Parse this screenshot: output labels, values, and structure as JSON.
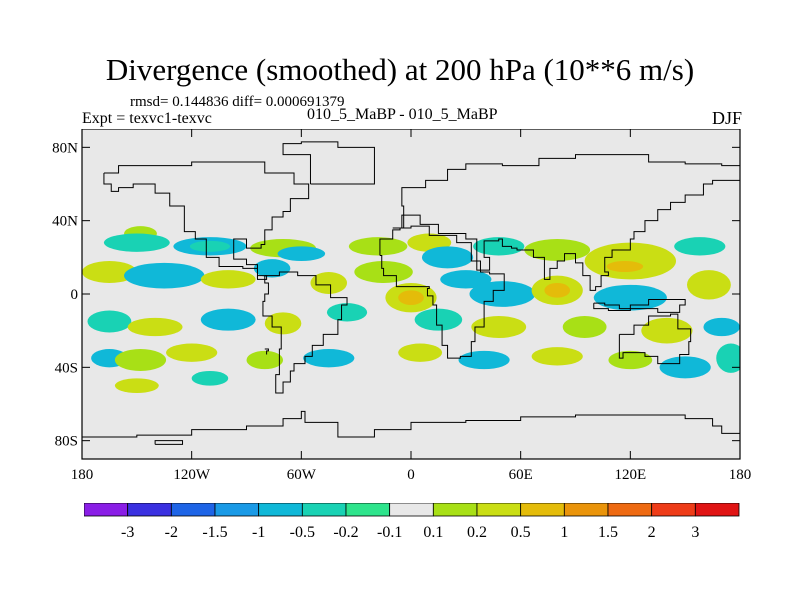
{
  "chart_data": {
    "type": "heatmap",
    "title": "Divergence (smoothed) at 200 hPa (10**6 m/s)",
    "stats_line": "rmsd= 0.144836 diff= 0.000691379",
    "subtitle_left": "Expt = texvc1-texvc",
    "subtitle_center": "010_5_MaBP - 010_5_MaBP",
    "subtitle_right": "DJF",
    "xlim": [
      -180,
      180
    ],
    "ylim": [
      -90,
      90
    ],
    "x_ticks": [
      {
        "value": -180,
        "label": "180"
      },
      {
        "value": -120,
        "label": "120W"
      },
      {
        "value": -60,
        "label": "60W"
      },
      {
        "value": 0,
        "label": "0"
      },
      {
        "value": 60,
        "label": "60E"
      },
      {
        "value": 120,
        "label": "120E"
      },
      {
        "value": 180,
        "label": "180"
      }
    ],
    "y_ticks": [
      {
        "value": 80,
        "label": "80N"
      },
      {
        "value": 40,
        "label": "40N"
      },
      {
        "value": 0,
        "label": "0"
      },
      {
        "value": -40,
        "label": "40S"
      },
      {
        "value": -80,
        "label": "80S"
      }
    ],
    "contour_levels": [
      "-3",
      "-2",
      "-1.5",
      "-1",
      "-0.5",
      "-0.2",
      "-0.1",
      "0.1",
      "0.2",
      "0.5",
      "1",
      "1.5",
      "2",
      "3"
    ],
    "colorbar_colors": [
      "#8a1ee6",
      "#3a30e0",
      "#1e64e6",
      "#1a9ae6",
      "#10b8d8",
      "#19d2b4",
      "#2ee48c",
      "#e8e8e8",
      "#a8e016",
      "#cade14",
      "#e4bc0a",
      "#ea940a",
      "#ee6a12",
      "#ee3c18",
      "#e01414"
    ],
    "background_color": "#e8e8e8",
    "blobs": [
      {
        "lon": -148,
        "lat": 33,
        "rlon": 9,
        "rlat": 4,
        "level": 8
      },
      {
        "lon": -150,
        "lat": 28,
        "rlon": 18,
        "rlat": 5,
        "level": 5
      },
      {
        "lon": -110,
        "lat": 26,
        "rlon": 20,
        "rlat": 5,
        "level": 4
      },
      {
        "lon": -110,
        "lat": 26,
        "rlon": 11,
        "rlat": 3,
        "level": 5
      },
      {
        "lon": -70,
        "lat": 25,
        "rlon": 18,
        "rlat": 5,
        "level": 8
      },
      {
        "lon": -60,
        "lat": 22,
        "rlon": 13,
        "rlat": 4,
        "level": 4
      },
      {
        "lon": -18,
        "lat": 26,
        "rlon": 16,
        "rlat": 5,
        "level": 8
      },
      {
        "lon": 10,
        "lat": 28,
        "rlon": 12,
        "rlat": 5,
        "level": 9
      },
      {
        "lon": 20,
        "lat": 20,
        "rlon": 14,
        "rlat": 6,
        "level": 4
      },
      {
        "lon": 48,
        "lat": 26,
        "rlon": 14,
        "rlat": 5,
        "level": 5
      },
      {
        "lon": 80,
        "lat": 24,
        "rlon": 18,
        "rlat": 6,
        "level": 8
      },
      {
        "lon": 120,
        "lat": 18,
        "rlon": 25,
        "rlat": 10,
        "level": 9
      },
      {
        "lon": 117,
        "lat": 15,
        "rlon": 10,
        "rlat": 3,
        "level": 10
      },
      {
        "lon": 158,
        "lat": 26,
        "rlon": 14,
        "rlat": 5,
        "level": 5
      },
      {
        "lon": -165,
        "lat": 12,
        "rlon": 15,
        "rlat": 6,
        "level": 9
      },
      {
        "lon": -135,
        "lat": 10,
        "rlon": 22,
        "rlat": 7,
        "level": 4
      },
      {
        "lon": -100,
        "lat": 8,
        "rlon": 15,
        "rlat": 5,
        "level": 9
      },
      {
        "lon": -76,
        "lat": 14,
        "rlon": 10,
        "rlat": 5,
        "level": 4
      },
      {
        "lon": -45,
        "lat": 6,
        "rlon": 10,
        "rlat": 6,
        "level": 9
      },
      {
        "lon": -15,
        "lat": 12,
        "rlon": 16,
        "rlat": 6,
        "level": 8
      },
      {
        "lon": 0,
        "lat": -2,
        "rlon": 14,
        "rlat": 8,
        "level": 9
      },
      {
        "lon": 0,
        "lat": -2,
        "rlon": 7,
        "rlat": 4,
        "level": 10
      },
      {
        "lon": 30,
        "lat": 8,
        "rlon": 14,
        "rlat": 5,
        "level": 4
      },
      {
        "lon": 50,
        "lat": 0,
        "rlon": 18,
        "rlat": 7,
        "level": 4
      },
      {
        "lon": 80,
        "lat": 2,
        "rlon": 14,
        "rlat": 8,
        "level": 9
      },
      {
        "lon": 80,
        "lat": 2,
        "rlon": 7,
        "rlat": 4,
        "level": 10
      },
      {
        "lon": 120,
        "lat": -2,
        "rlon": 20,
        "rlat": 7,
        "level": 4
      },
      {
        "lon": 163,
        "lat": 5,
        "rlon": 12,
        "rlat": 8,
        "level": 9
      },
      {
        "lon": -165,
        "lat": -15,
        "rlon": 12,
        "rlat": 6,
        "level": 5
      },
      {
        "lon": -140,
        "lat": -18,
        "rlon": 15,
        "rlat": 5,
        "level": 9
      },
      {
        "lon": -100,
        "lat": -14,
        "rlon": 15,
        "rlat": 6,
        "level": 4
      },
      {
        "lon": -70,
        "lat": -16,
        "rlon": 10,
        "rlat": 6,
        "level": 9
      },
      {
        "lon": -35,
        "lat": -10,
        "rlon": 11,
        "rlat": 5,
        "level": 5
      },
      {
        "lon": 15,
        "lat": -14,
        "rlon": 13,
        "rlat": 6,
        "level": 5
      },
      {
        "lon": 48,
        "lat": -18,
        "rlon": 15,
        "rlat": 6,
        "level": 9
      },
      {
        "lon": 95,
        "lat": -18,
        "rlon": 12,
        "rlat": 6,
        "level": 8
      },
      {
        "lon": 140,
        "lat": -20,
        "rlon": 14,
        "rlat": 7,
        "level": 9
      },
      {
        "lon": 170,
        "lat": -18,
        "rlon": 10,
        "rlat": 5,
        "level": 4
      },
      {
        "lon": -165,
        "lat": -35,
        "rlon": 10,
        "rlat": 5,
        "level": 4
      },
      {
        "lon": -148,
        "lat": -36,
        "rlon": 14,
        "rlat": 6,
        "level": 8
      },
      {
        "lon": -120,
        "lat": -32,
        "rlon": 14,
        "rlat": 5,
        "level": 9
      },
      {
        "lon": -80,
        "lat": -36,
        "rlon": 10,
        "rlat": 5,
        "level": 8
      },
      {
        "lon": -45,
        "lat": -35,
        "rlon": 14,
        "rlat": 5,
        "level": 4
      },
      {
        "lon": 5,
        "lat": -32,
        "rlon": 12,
        "rlat": 5,
        "level": 9
      },
      {
        "lon": 40,
        "lat": -36,
        "rlon": 14,
        "rlat": 5,
        "level": 4
      },
      {
        "lon": 80,
        "lat": -34,
        "rlon": 14,
        "rlat": 5,
        "level": 9
      },
      {
        "lon": 120,
        "lat": -36,
        "rlon": 12,
        "rlat": 5,
        "level": 8
      },
      {
        "lon": 150,
        "lat": -40,
        "rlon": 14,
        "rlat": 6,
        "level": 4
      },
      {
        "lon": 175,
        "lat": -35,
        "rlon": 8,
        "rlat": 8,
        "level": 5
      },
      {
        "lon": -150,
        "lat": -50,
        "rlon": 12,
        "rlat": 4,
        "level": 9
      },
      {
        "lon": -110,
        "lat": -46,
        "rlon": 10,
        "rlat": 4,
        "level": 5
      }
    ],
    "continents": [
      [
        [
          -168,
          66
        ],
        [
          -160,
          70
        ],
        [
          -140,
          70
        ],
        [
          -120,
          72
        ],
        [
          -90,
          72
        ],
        [
          -80,
          66
        ],
        [
          -64,
          60
        ],
        [
          -56,
          52
        ],
        [
          -66,
          45
        ],
        [
          -70,
          42
        ],
        [
          -76,
          35
        ],
        [
          -80,
          27
        ],
        [
          -82,
          25
        ],
        [
          -90,
          30
        ],
        [
          -97,
          26
        ],
        [
          -97,
          19
        ],
        [
          -90,
          16
        ],
        [
          -84,
          10
        ],
        [
          -79,
          8
        ],
        [
          -84,
          14
        ],
        [
          -92,
          15
        ],
        [
          -105,
          20
        ],
        [
          -112,
          30
        ],
        [
          -118,
          34
        ],
        [
          -124,
          42
        ],
        [
          -124,
          48
        ],
        [
          -132,
          55
        ],
        [
          -140,
          60
        ],
        [
          -152,
          58
        ],
        [
          -160,
          56
        ],
        [
          -164,
          60
        ],
        [
          -168,
          66
        ]
      ],
      [
        [
          -80,
          10
        ],
        [
          -72,
          12
        ],
        [
          -62,
          10
        ],
        [
          -52,
          5
        ],
        [
          -44,
          -2
        ],
        [
          -35,
          -6
        ],
        [
          -38,
          -14
        ],
        [
          -40,
          -22
        ],
        [
          -48,
          -28
        ],
        [
          -54,
          -34
        ],
        [
          -58,
          -38
        ],
        [
          -64,
          -42
        ],
        [
          -66,
          -48
        ],
        [
          -70,
          -54
        ],
        [
          -74,
          -52
        ],
        [
          -74,
          -44
        ],
        [
          -72,
          -30
        ],
        [
          -71,
          -18
        ],
        [
          -76,
          -12
        ],
        [
          -81,
          -4
        ],
        [
          -80,
          0
        ],
        [
          -78,
          6
        ],
        [
          -80,
          10
        ]
      ],
      [
        [
          -10,
          36
        ],
        [
          -4,
          48
        ],
        [
          -5,
          58
        ],
        [
          8,
          62
        ],
        [
          20,
          68
        ],
        [
          30,
          71
        ],
        [
          50,
          70
        ],
        [
          70,
          74
        ],
        [
          90,
          76
        ],
        [
          110,
          76
        ],
        [
          130,
          72
        ],
        [
          150,
          71
        ],
        [
          170,
          70
        ],
        [
          180,
          67
        ],
        [
          180,
          62
        ],
        [
          165,
          60
        ],
        [
          160,
          54
        ],
        [
          150,
          50
        ],
        [
          142,
          46
        ],
        [
          135,
          40
        ],
        [
          128,
          34
        ],
        [
          122,
          30
        ],
        [
          120,
          24
        ],
        [
          110,
          20
        ],
        [
          106,
          12
        ],
        [
          108,
          10
        ],
        [
          104,
          4
        ],
        [
          101,
          2
        ],
        [
          98,
          10
        ],
        [
          94,
          17
        ],
        [
          90,
          22
        ],
        [
          84,
          18
        ],
        [
          80,
          14
        ],
        [
          76,
          8
        ],
        [
          73,
          20
        ],
        [
          67,
          24
        ],
        [
          58,
          25
        ],
        [
          55,
          26
        ],
        [
          50,
          30
        ],
        [
          48,
          29
        ],
        [
          40,
          20
        ],
        [
          43,
          13
        ],
        [
          36,
          30
        ],
        [
          30,
          33
        ],
        [
          22,
          33
        ],
        [
          15,
          38
        ],
        [
          10,
          38
        ],
        [
          5,
          43
        ],
        [
          -5,
          36
        ],
        [
          -10,
          36
        ]
      ],
      [
        [
          -17,
          21
        ],
        [
          -16,
          14
        ],
        [
          -15,
          10
        ],
        [
          -8,
          4
        ],
        [
          5,
          4
        ],
        [
          10,
          3
        ],
        [
          9,
          -1
        ],
        [
          12,
          -6
        ],
        [
          14,
          -17
        ],
        [
          17,
          -28
        ],
        [
          20,
          -35
        ],
        [
          27,
          -34
        ],
        [
          33,
          -26
        ],
        [
          35,
          -18
        ],
        [
          40,
          -14
        ],
        [
          40,
          -4
        ],
        [
          45,
          2
        ],
        [
          51,
          11
        ],
        [
          43,
          12
        ],
        [
          38,
          18
        ],
        [
          33,
          28
        ],
        [
          25,
          32
        ],
        [
          10,
          37
        ],
        [
          0,
          36
        ],
        [
          -6,
          35
        ],
        [
          -10,
          30
        ],
        [
          -17,
          21
        ]
      ],
      [
        [
          114,
          -22
        ],
        [
          122,
          -17
        ],
        [
          130,
          -12
        ],
        [
          137,
          -12
        ],
        [
          142,
          -11
        ],
        [
          146,
          -19
        ],
        [
          153,
          -26
        ],
        [
          152,
          -33
        ],
        [
          147,
          -38
        ],
        [
          140,
          -38
        ],
        [
          135,
          -34
        ],
        [
          128,
          -32
        ],
        [
          116,
          -35
        ],
        [
          114,
          -30
        ],
        [
          114,
          -22
        ]
      ],
      [
        [
          -180,
          -78
        ],
        [
          -150,
          -77
        ],
        [
          -120,
          -74
        ],
        [
          -90,
          -72
        ],
        [
          -70,
          -68
        ],
        [
          -60,
          -64
        ],
        [
          -58,
          -70
        ],
        [
          -40,
          -78
        ],
        [
          -20,
          -74
        ],
        [
          0,
          -70
        ],
        [
          30,
          -69
        ],
        [
          60,
          -67
        ],
        [
          90,
          -66
        ],
        [
          120,
          -66
        ],
        [
          150,
          -68
        ],
        [
          165,
          -72
        ],
        [
          170,
          -76
        ],
        [
          180,
          -78
        ]
      ],
      [
        [
          -55,
          60
        ],
        [
          -45,
          60
        ],
        [
          -20,
          70
        ],
        [
          -20,
          80
        ],
        [
          -40,
          83
        ],
        [
          -60,
          82
        ],
        [
          -70,
          76
        ],
        [
          -55,
          60
        ]
      ],
      [
        [
          -80,
          -30
        ],
        [
          -78,
          -31
        ],
        [
          -79,
          -33
        ]
      ],
      [
        [
          100,
          -5
        ],
        [
          106,
          -6
        ],
        [
          114,
          -8
        ],
        [
          120,
          -6
        ],
        [
          130,
          -3
        ],
        [
          140,
          -3
        ],
        [
          150,
          -6
        ],
        [
          147,
          -10
        ],
        [
          135,
          -8
        ],
        [
          120,
          -9
        ],
        [
          108,
          -8
        ],
        [
          100,
          -5
        ]
      ],
      [
        [
          -140,
          -82
        ],
        [
          -125,
          -82
        ],
        [
          -125,
          -80
        ],
        [
          -140,
          -80
        ],
        [
          -140,
          -82
        ]
      ]
    ]
  }
}
